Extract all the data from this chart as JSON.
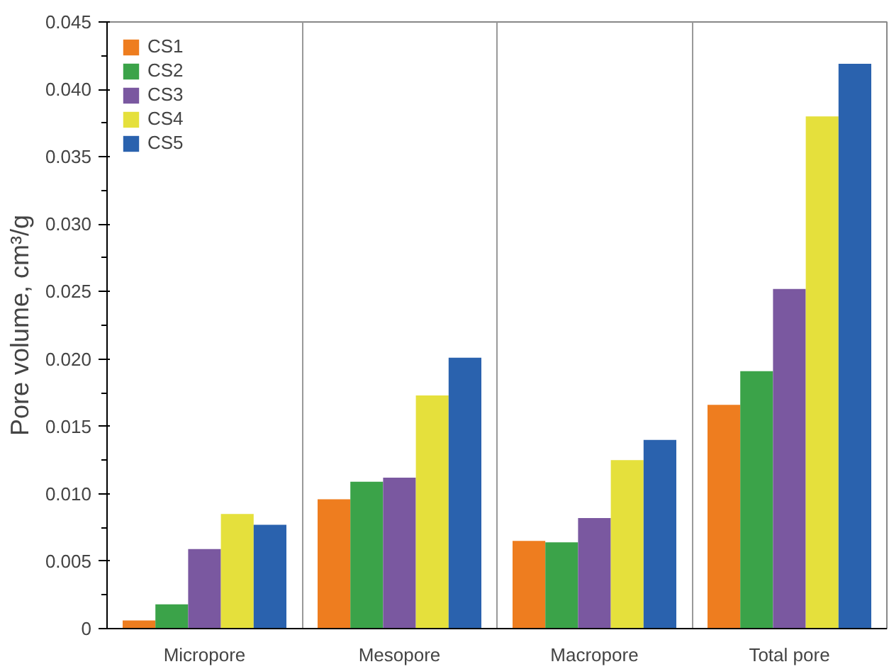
{
  "chart_data": {
    "type": "bar",
    "ylabel": "Pore volume, cm³/g",
    "categories": [
      "Micropore",
      "Mesopore",
      "Macropore",
      "Total pore"
    ],
    "series": [
      {
        "name": "CS1",
        "color": "#ee7d1f",
        "values": [
          0.0006,
          0.0096,
          0.0065,
          0.0166
        ]
      },
      {
        "name": "CS2",
        "color": "#3ba349",
        "values": [
          0.0018,
          0.0109,
          0.0064,
          0.0191
        ]
      },
      {
        "name": "CS3",
        "color": "#7a58a0",
        "values": [
          0.0059,
          0.0112,
          0.0082,
          0.0252
        ]
      },
      {
        "name": "CS4",
        "color": "#e5e03c",
        "values": [
          0.0085,
          0.0173,
          0.0125,
          0.038
        ]
      },
      {
        "name": "CS5",
        "color": "#2a62ae",
        "values": [
          0.0077,
          0.0201,
          0.014,
          0.0419
        ]
      }
    ],
    "ylim": [
      0,
      0.045
    ],
    "yticks": [
      0,
      0.005,
      {
        "value": 0.01,
        "label": "0.010"
      },
      0.015,
      {
        "value": 0.02,
        "label": "0.020"
      },
      0.025,
      {
        "value": 0.03,
        "label": "0.030"
      },
      0.035,
      {
        "value": 0.04,
        "label": "0.040"
      },
      0.045
    ],
    "grid": "x",
    "legend": "top left"
  }
}
